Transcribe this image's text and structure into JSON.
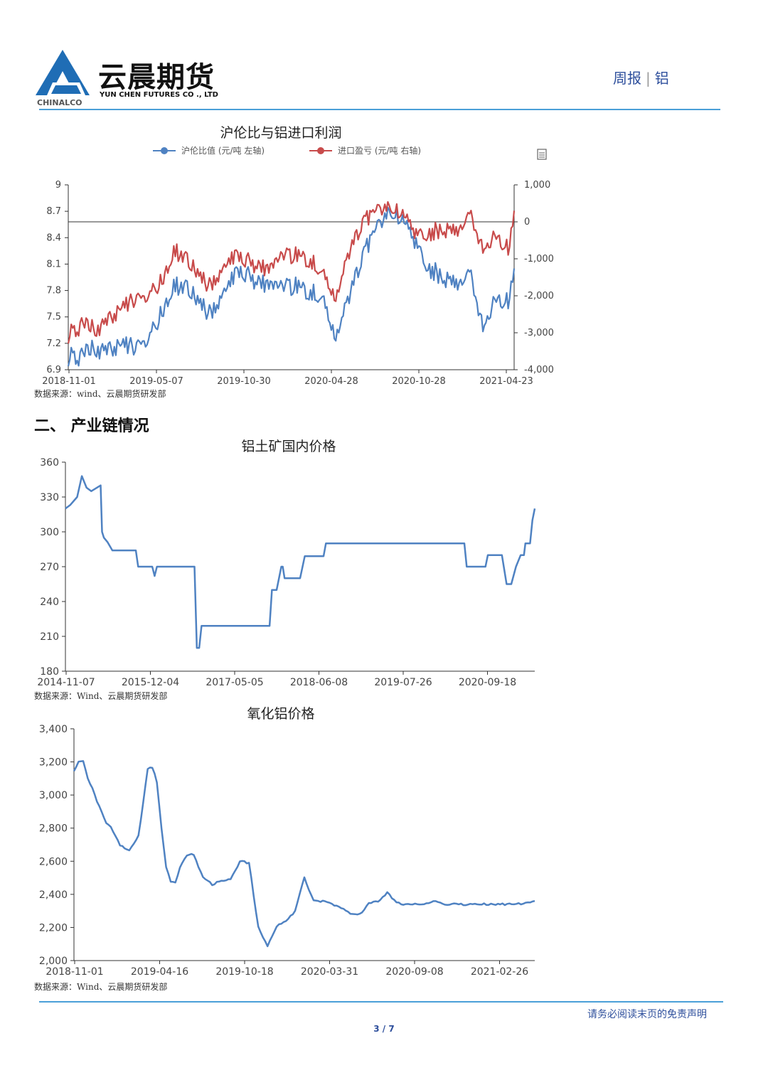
{
  "header": {
    "brand_cn": "云晨期货",
    "brand_en": "YUN CHEN FUTURES CO ., LTD",
    "brand_sub": "CHINALCO",
    "report_type": "周报",
    "report_subject": "铝",
    "accent_color": "#4a9fd8"
  },
  "section": {
    "title": "二、 产业链情况"
  },
  "footer": {
    "disclaimer": "请务必阅读末页的免责声明",
    "page": "3 / 7"
  },
  "chart_data": [
    {
      "type": "line",
      "title": "沪伦比与铝进口利润",
      "legend": [
        "沪伦比值 (元/吨 左轴)",
        "进口盈亏 (元/吨 右轴)"
      ],
      "legend_placement": "top",
      "x_tick_labels": [
        "2018-11-01",
        "2019-05-07",
        "2019-10-30",
        "2020-04-28",
        "2020-10-28",
        "2021-04-23"
      ],
      "y_left": {
        "ticks": [
          "6.9",
          "7.2",
          "7.5",
          "7.8",
          "8.1",
          "8.4",
          "8.7",
          "9"
        ],
        "range": [
          6.9,
          9
        ]
      },
      "y_right": {
        "ticks": [
          "-4,000",
          "-3,000",
          "-2,000",
          "-1,000",
          "0",
          "1,000"
        ],
        "range": [
          -4000,
          1000
        ]
      },
      "reference_line_right": 0,
      "source": "数据来源：wind、云晨期货研发部",
      "series": [
        {
          "name": "沪伦比值 (元/吨 左轴)",
          "color": "#4f82c2",
          "axis": "left",
          "x": [
            0,
            3,
            6,
            9,
            12,
            15,
            18,
            21,
            24,
            27,
            30,
            33,
            36,
            39,
            42,
            45,
            48,
            51,
            54,
            57,
            60,
            63,
            66,
            69,
            72,
            75,
            78,
            81,
            84,
            87,
            90,
            93,
            96,
            99,
            100
          ],
          "y": [
            7.05,
            7.05,
            7.15,
            7.1,
            7.2,
            7.15,
            7.25,
            7.55,
            7.85,
            7.85,
            7.6,
            7.55,
            7.9,
            8.05,
            7.85,
            7.9,
            7.85,
            7.85,
            7.8,
            7.7,
            7.25,
            7.7,
            8.2,
            8.5,
            8.65,
            8.6,
            8.3,
            8.05,
            7.95,
            7.9,
            8.05,
            7.4,
            7.7,
            7.7,
            8.05
          ]
        },
        {
          "name": "进口盈亏 (元/吨 右轴)",
          "color": "#c84b4b",
          "axis": "right",
          "x": [
            0,
            3,
            6,
            9,
            12,
            15,
            18,
            21,
            24,
            27,
            30,
            33,
            36,
            39,
            42,
            45,
            48,
            51,
            54,
            57,
            60,
            63,
            66,
            69,
            72,
            75,
            78,
            81,
            84,
            87,
            90,
            93,
            96,
            99,
            100
          ],
          "y": [
            -3050,
            -2800,
            -2900,
            -2700,
            -2300,
            -2100,
            -2000,
            -1600,
            -800,
            -1000,
            -1600,
            -1700,
            -1000,
            -900,
            -1300,
            -1200,
            -900,
            -900,
            -1000,
            -1400,
            -2100,
            -900,
            0,
            300,
            300,
            200,
            -400,
            -300,
            -200,
            -200,
            300,
            -700,
            -400,
            -700,
            300
          ]
        }
      ]
    },
    {
      "type": "line",
      "title": "铝土矿国内价格",
      "x_tick_labels": [
        "2014-11-07",
        "2015-12-04",
        "2017-05-05",
        "2018-06-08",
        "2019-07-26",
        "2020-09-18"
      ],
      "y_axis": {
        "ticks": [
          "180",
          "210",
          "240",
          "270",
          "300",
          "330",
          "360"
        ],
        "range": [
          180,
          360
        ]
      },
      "source": "数据来源：Wind、云晨期货研发部",
      "series": [
        {
          "name": "",
          "color": "#4f82c2",
          "x": [
            0,
            1,
            2.5,
            3.5,
            4.5,
            5.5,
            7.5,
            7.8,
            8.2,
            9,
            10,
            15,
            15.5,
            18.5,
            19,
            19.5,
            27.5,
            28,
            28.5,
            29,
            30,
            43.5,
            44,
            45,
            46,
            46.3,
            46.7,
            50,
            51,
            55,
            55.5,
            58.5,
            59,
            61,
            65,
            81,
            82,
            83.5,
            84,
            85,
            85.5,
            89.5,
            90,
            91,
            92,
            93,
            94,
            95,
            96,
            97,
            97.7,
            98,
            98.5,
            99,
            99.5,
            100
          ],
          "y": [
            320,
            323,
            330,
            348,
            338,
            335,
            340,
            300,
            295,
            291,
            284,
            284,
            270,
            270,
            262,
            270,
            270,
            200,
            200,
            219,
            219,
            219,
            250,
            250,
            270,
            270,
            260,
            260,
            279,
            279,
            290,
            290,
            290,
            290,
            290,
            290,
            290,
            290,
            290,
            290,
            270,
            270,
            280,
            280,
            280,
            280,
            255,
            255,
            270,
            280,
            280,
            290,
            290,
            290,
            310,
            320
          ]
        }
      ]
    },
    {
      "type": "line",
      "title": "氧化铝价格",
      "x_tick_labels": [
        "2018-11-01",
        "2019-04-16",
        "2019-10-18",
        "2020-03-31",
        "2020-09-08",
        "2021-02-26"
      ],
      "y_axis": {
        "ticks": [
          "2,000",
          "2,200",
          "2,400",
          "2,600",
          "2,800",
          "3,000",
          "3,200",
          "3,400"
        ],
        "range": [
          2000,
          3400
        ]
      },
      "source": "数据来源：Wind、云晨期货研发部",
      "series": [
        {
          "name": "",
          "color": "#4f82c2",
          "x": [
            0,
            1,
            2,
            3,
            4,
            5,
            6,
            7,
            8,
            10,
            12,
            14,
            16,
            17,
            18,
            19,
            20,
            21,
            22,
            23,
            24,
            25,
            26,
            28,
            30,
            32,
            34,
            36,
            38,
            40,
            42,
            44,
            46,
            48,
            50,
            52,
            54,
            56,
            58,
            60,
            62,
            63,
            64,
            66,
            68,
            70,
            72,
            73,
            75,
            76,
            77,
            78,
            80,
            82,
            84,
            86,
            88,
            90,
            92,
            94,
            96,
            98,
            100
          ],
          "y": [
            3150,
            3200,
            3210,
            3100,
            3040,
            2960,
            2900,
            2830,
            2810,
            2700,
            2660,
            2750,
            3160,
            3170,
            3080,
            2800,
            2570,
            2480,
            2470,
            2560,
            2620,
            2640,
            2640,
            2500,
            2460,
            2480,
            2490,
            2600,
            2590,
            2200,
            2090,
            2210,
            2240,
            2300,
            2500,
            2360,
            2360,
            2340,
            2320,
            2280,
            2280,
            2310,
            2350,
            2360,
            2410,
            2350,
            2340,
            2340,
            2340,
            2340,
            2350,
            2360,
            2340,
            2340,
            2340,
            2340,
            2340,
            2340,
            2340,
            2340,
            2340,
            2350,
            2360
          ]
        }
      ]
    }
  ]
}
